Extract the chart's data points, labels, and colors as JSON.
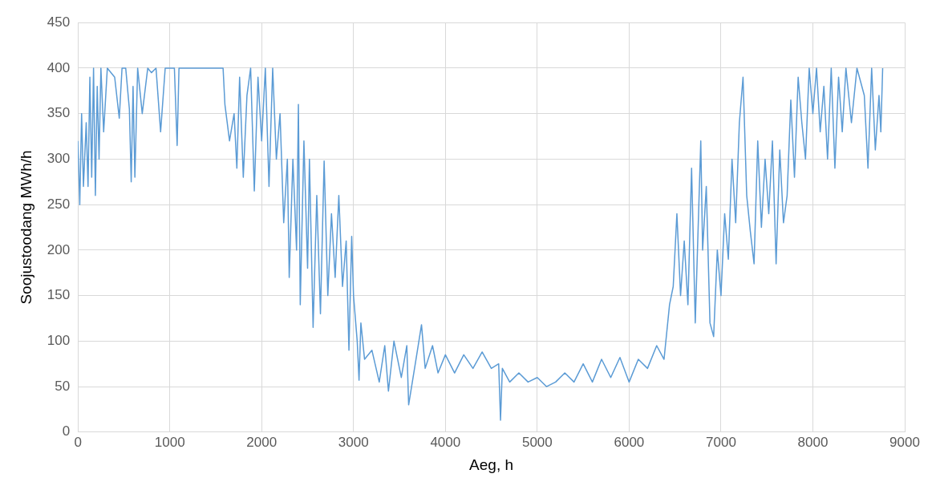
{
  "chart_data": {
    "type": "line",
    "xlabel": "Aeg, h",
    "ylabel": "Soojustoodang MWh/h",
    "xlim": [
      0,
      9000
    ],
    "xticks": [
      0,
      1000,
      2000,
      3000,
      4000,
      5000,
      6000,
      7000,
      8000,
      9000
    ],
    "ylim": [
      0,
      450
    ],
    "yticks": [
      0,
      50,
      100,
      150,
      200,
      250,
      300,
      350,
      400,
      450
    ],
    "grid": true,
    "legend": false,
    "marker": "none",
    "line_style": "solid",
    "series": [
      {
        "color": "#5b9bd5",
        "x": [
          0,
          20,
          40,
          60,
          90,
          110,
          130,
          150,
          170,
          190,
          210,
          230,
          250,
          280,
          320,
          400,
          450,
          480,
          520,
          560,
          580,
          600,
          620,
          650,
          700,
          760,
          800,
          850,
          900,
          950,
          1050,
          1080,
          1100,
          1580,
          1600,
          1650,
          1700,
          1730,
          1760,
          1800,
          1840,
          1880,
          1920,
          1960,
          2000,
          2040,
          2080,
          2120,
          2160,
          2200,
          2240,
          2280,
          2300,
          2340,
          2380,
          2400,
          2420,
          2460,
          2500,
          2520,
          2560,
          2600,
          2640,
          2680,
          2720,
          2760,
          2800,
          2840,
          2880,
          2920,
          2950,
          2980,
          3000,
          3040,
          3060,
          3080,
          3120,
          3200,
          3280,
          3340,
          3380,
          3440,
          3520,
          3580,
          3600,
          3680,
          3740,
          3780,
          3860,
          3920,
          4000,
          4100,
          4200,
          4300,
          4400,
          4500,
          4580,
          4600,
          4620,
          4700,
          4800,
          4900,
          5000,
          5100,
          5200,
          5300,
          5400,
          5500,
          5600,
          5700,
          5800,
          5900,
          6000,
          6100,
          6200,
          6300,
          6380,
          6440,
          6480,
          6520,
          6560,
          6600,
          6640,
          6680,
          6720,
          6780,
          6800,
          6840,
          6880,
          6920,
          6960,
          7000,
          7040,
          7080,
          7120,
          7160,
          7200,
          7240,
          7280,
          7320,
          7360,
          7400,
          7440,
          7480,
          7520,
          7560,
          7600,
          7640,
          7680,
          7720,
          7760,
          7800,
          7840,
          7880,
          7920,
          7960,
          8000,
          8040,
          8080,
          8120,
          8160,
          8200,
          8240,
          8280,
          8320,
          8360,
          8420,
          8480,
          8560,
          8600,
          8640,
          8680,
          8720,
          8740,
          8760
        ],
        "values": [
          320,
          250,
          350,
          270,
          340,
          270,
          390,
          280,
          400,
          260,
          380,
          300,
          400,
          330,
          400,
          390,
          345,
          400,
          400,
          355,
          275,
          380,
          280,
          400,
          350,
          400,
          395,
          400,
          330,
          400,
          400,
          315,
          400,
          400,
          360,
          320,
          350,
          290,
          390,
          280,
          370,
          400,
          265,
          390,
          320,
          400,
          270,
          400,
          300,
          350,
          230,
          300,
          170,
          300,
          200,
          360,
          140,
          320,
          180,
          300,
          115,
          260,
          130,
          298,
          150,
          240,
          170,
          260,
          160,
          210,
          90,
          215,
          150,
          100,
          57,
          120,
          80,
          90,
          55,
          95,
          45,
          100,
          60,
          95,
          30,
          80,
          118,
          70,
          95,
          65,
          85,
          65,
          85,
          70,
          88,
          70,
          75,
          13,
          70,
          55,
          65,
          55,
          60,
          50,
          55,
          65,
          55,
          75,
          55,
          80,
          60,
          82,
          55,
          80,
          70,
          95,
          80,
          140,
          160,
          240,
          150,
          210,
          140,
          290,
          120,
          320,
          200,
          270,
          120,
          105,
          200,
          150,
          240,
          190,
          300,
          230,
          340,
          390,
          260,
          220,
          185,
          320,
          225,
          300,
          240,
          320,
          185,
          310,
          230,
          260,
          365,
          280,
          390,
          340,
          300,
          400,
          350,
          400,
          330,
          380,
          300,
          400,
          290,
          390,
          330,
          400,
          340,
          400,
          370,
          290,
          400,
          310,
          370,
          330,
          400
        ]
      }
    ]
  }
}
